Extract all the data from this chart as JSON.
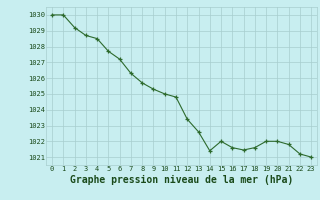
{
  "x": [
    0,
    1,
    2,
    3,
    4,
    5,
    6,
    7,
    8,
    9,
    10,
    11,
    12,
    13,
    14,
    15,
    16,
    17,
    18,
    19,
    20,
    21,
    22,
    23
  ],
  "y": [
    1030,
    1030,
    1029.2,
    1028.7,
    1028.5,
    1027.7,
    1027.2,
    1026.3,
    1025.7,
    1025.3,
    1025.0,
    1024.8,
    1023.4,
    1022.6,
    1021.4,
    1022.0,
    1021.6,
    1021.45,
    1021.6,
    1022.0,
    1022.0,
    1021.8,
    1021.2,
    1021.0
  ],
  "line_color": "#2d6a2d",
  "marker_color": "#2d6a2d",
  "bg_color": "#c8eef0",
  "grid_color": "#a8cece",
  "title": "Graphe pression niveau de la mer (hPa)",
  "title_color": "#1a4a1a",
  "ylim": [
    1020.5,
    1030.5
  ],
  "xlim": [
    -0.5,
    23.5
  ],
  "yticks": [
    1021,
    1022,
    1023,
    1024,
    1025,
    1026,
    1027,
    1028,
    1029,
    1030
  ],
  "xticks": [
    0,
    1,
    2,
    3,
    4,
    5,
    6,
    7,
    8,
    9,
    10,
    11,
    12,
    13,
    14,
    15,
    16,
    17,
    18,
    19,
    20,
    21,
    22,
    23
  ],
  "xtick_labels": [
    "0",
    "1",
    "2",
    "3",
    "4",
    "5",
    "6",
    "7",
    "8",
    "9",
    "10",
    "11",
    "12",
    "13",
    "14",
    "15",
    "16",
    "17",
    "18",
    "19",
    "20",
    "21",
    "22",
    "23"
  ],
  "tick_color": "#1a4a1a",
  "tick_fontsize": 5.0,
  "title_fontsize": 7.0,
  "linewidth": 0.8,
  "markersize": 3.0
}
